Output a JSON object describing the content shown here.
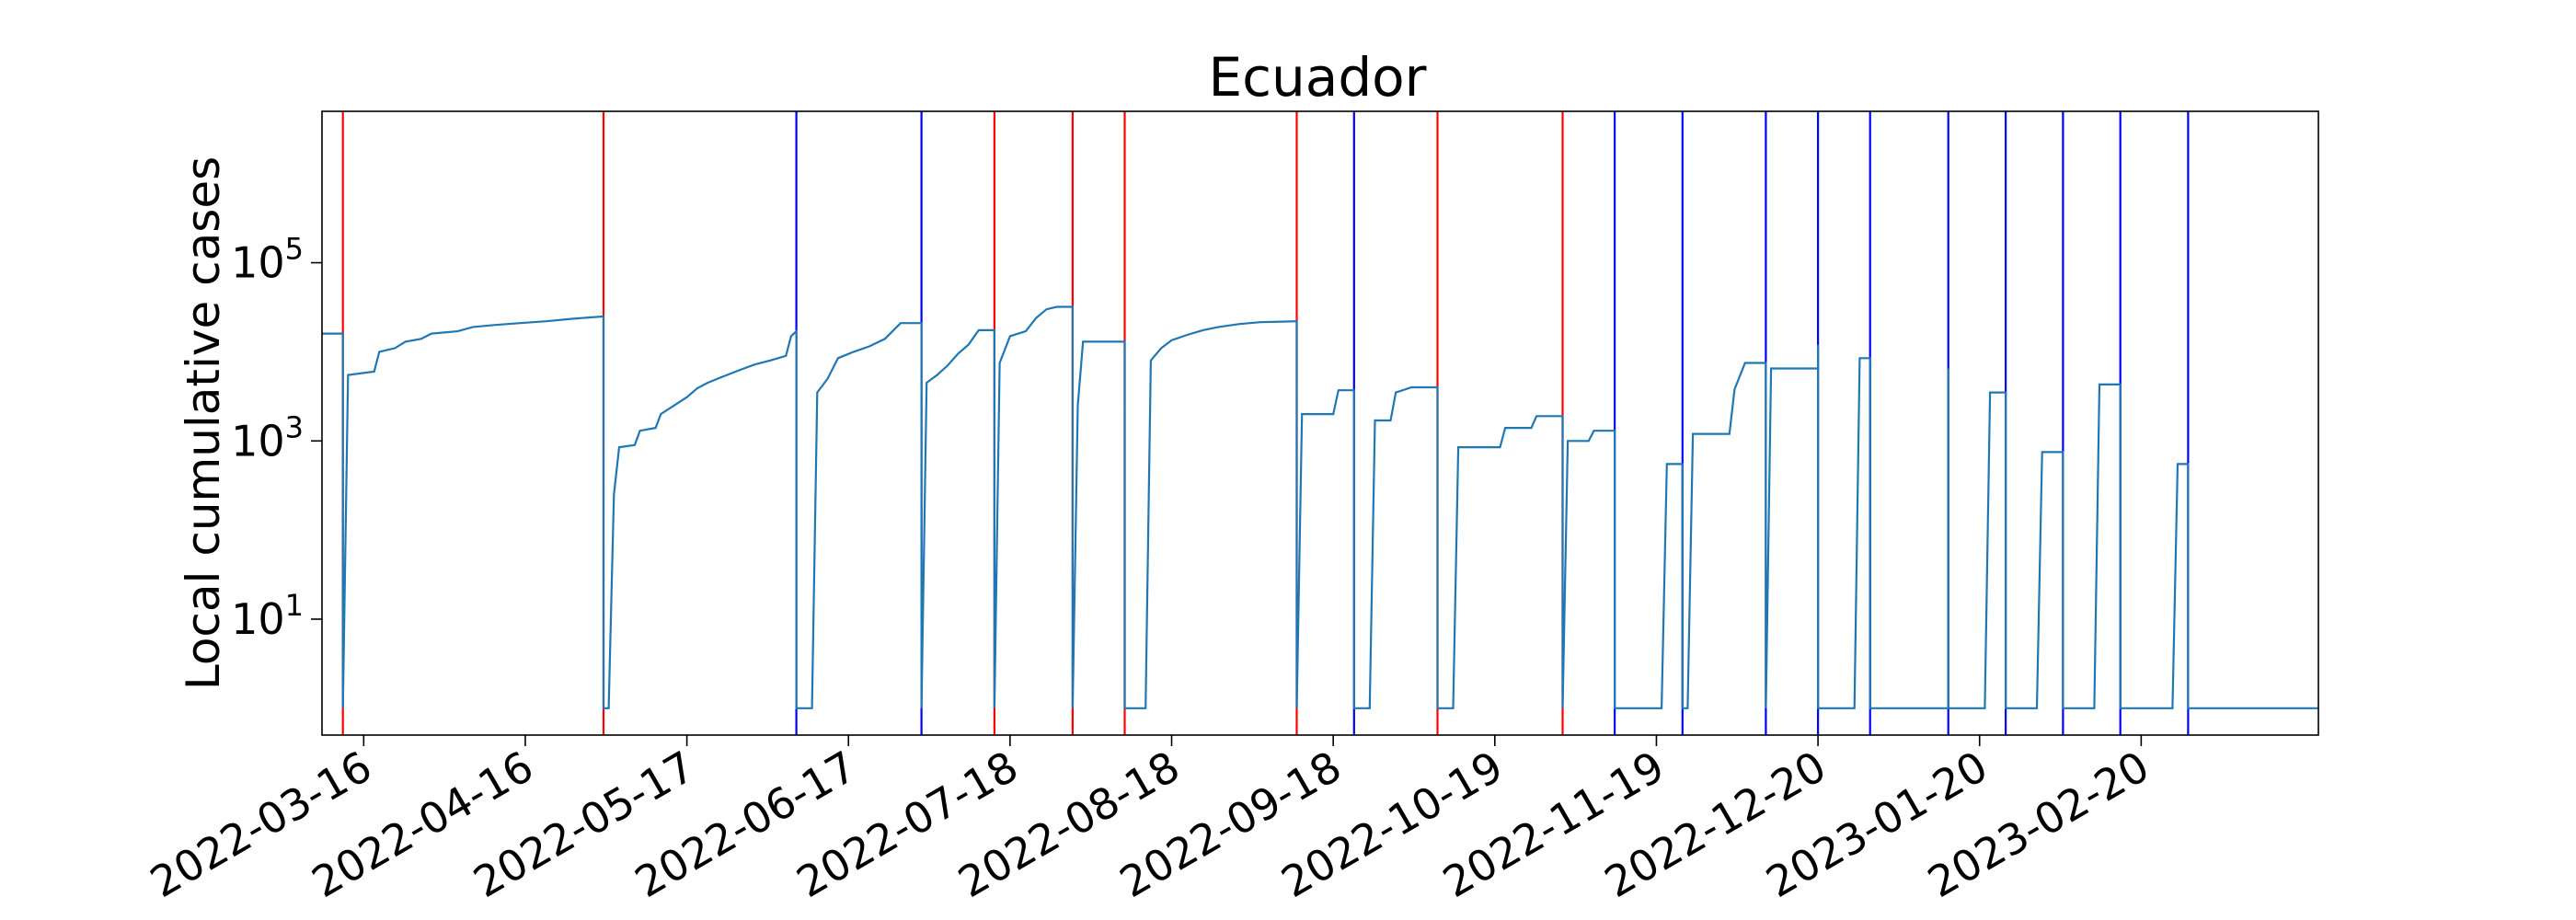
{
  "chart_data": {
    "type": "line",
    "title": "Ecuador",
    "xlabel": "",
    "ylabel": "Local cumulative cases",
    "y_scale": "log",
    "ylim": [
      0.5,
      5000000
    ],
    "xlim": [
      "2022-03-08",
      "2023-03-26"
    ],
    "y_ticks": [
      {
        "value": 10,
        "base": "10",
        "exp": "1"
      },
      {
        "value": 1000,
        "base": "10",
        "exp": "3"
      },
      {
        "value": 100000,
        "base": "10",
        "exp": "5"
      }
    ],
    "x_ticks": [
      "2022-03-16",
      "2022-04-16",
      "2022-05-17",
      "2022-06-17",
      "2022-07-18",
      "2022-08-18",
      "2022-09-18",
      "2022-10-19",
      "2022-11-19",
      "2022-12-20",
      "2023-01-20",
      "2023-02-20"
    ],
    "grid": false,
    "line_color": "#1f77b4",
    "vertical_lines": [
      {
        "x": "2022-03-12",
        "color": "#ff0000"
      },
      {
        "x": "2022-05-01",
        "color": "#ff0000"
      },
      {
        "x": "2022-06-07",
        "color": "#0000ff"
      },
      {
        "x": "2022-07-01",
        "color": "#0000ff"
      },
      {
        "x": "2022-07-15",
        "color": "#ff0000"
      },
      {
        "x": "2022-07-30",
        "color": "#ff0000"
      },
      {
        "x": "2022-08-09",
        "color": "#ff0000"
      },
      {
        "x": "2022-09-11",
        "color": "#ff0000"
      },
      {
        "x": "2022-09-22",
        "color": "#0000ff"
      },
      {
        "x": "2022-10-08",
        "color": "#ff0000"
      },
      {
        "x": "2022-11-01",
        "color": "#ff0000"
      },
      {
        "x": "2022-11-11",
        "color": "#0000ff"
      },
      {
        "x": "2022-11-24",
        "color": "#0000ff"
      },
      {
        "x": "2022-12-10",
        "color": "#0000ff"
      },
      {
        "x": "2022-12-20",
        "color": "#0000ff"
      },
      {
        "x": "2022-12-30",
        "color": "#0000ff"
      },
      {
        "x": "2023-01-14",
        "color": "#0000ff"
      },
      {
        "x": "2023-01-25",
        "color": "#0000ff"
      },
      {
        "x": "2023-02-05",
        "color": "#0000ff"
      },
      {
        "x": "2023-02-16",
        "color": "#0000ff"
      },
      {
        "x": "2023-03-01",
        "color": "#0000ff"
      }
    ],
    "series": [
      {
        "values": [
          [
            "2022-03-08",
            16000
          ],
          [
            "2022-03-12",
            16000
          ],
          [
            "2022-03-12",
            1
          ],
          [
            "2022-03-13",
            5500
          ],
          [
            "2022-03-18",
            6000
          ],
          [
            "2022-03-19",
            10000
          ],
          [
            "2022-03-22",
            11000
          ],
          [
            "2022-03-24",
            13000
          ],
          [
            "2022-03-27",
            14000
          ],
          [
            "2022-03-29",
            16000
          ],
          [
            "2022-04-03",
            17000
          ],
          [
            "2022-04-06",
            19000
          ],
          [
            "2022-04-10",
            20000
          ],
          [
            "2022-04-15",
            21000
          ],
          [
            "2022-04-20",
            22000
          ],
          [
            "2022-04-25",
            23500
          ],
          [
            "2022-05-01",
            25000
          ],
          [
            "2022-05-01",
            1
          ],
          [
            "2022-05-02",
            1
          ],
          [
            "2022-05-03",
            250
          ],
          [
            "2022-05-04",
            850
          ],
          [
            "2022-05-07",
            900
          ],
          [
            "2022-05-08",
            1300
          ],
          [
            "2022-05-11",
            1400
          ],
          [
            "2022-05-12",
            2000
          ],
          [
            "2022-05-15",
            2600
          ],
          [
            "2022-05-17",
            3100
          ],
          [
            "2022-05-19",
            3900
          ],
          [
            "2022-05-21",
            4500
          ],
          [
            "2022-05-24",
            5300
          ],
          [
            "2022-05-27",
            6200
          ],
          [
            "2022-05-30",
            7200
          ],
          [
            "2022-06-02",
            8000
          ],
          [
            "2022-06-05",
            9000
          ],
          [
            "2022-06-06",
            15000
          ],
          [
            "2022-06-07",
            17000
          ],
          [
            "2022-06-07",
            1
          ],
          [
            "2022-06-10",
            1
          ],
          [
            "2022-06-11",
            3500
          ],
          [
            "2022-06-13",
            5000
          ],
          [
            "2022-06-15",
            8500
          ],
          [
            "2022-06-18",
            10000
          ],
          [
            "2022-06-21",
            11500
          ],
          [
            "2022-06-24",
            14000
          ],
          [
            "2022-06-27",
            21000
          ],
          [
            "2022-07-01",
            21000
          ],
          [
            "2022-07-01",
            1
          ],
          [
            "2022-07-02",
            4500
          ],
          [
            "2022-07-04",
            5500
          ],
          [
            "2022-07-06",
            7000
          ],
          [
            "2022-07-08",
            9500
          ],
          [
            "2022-07-10",
            12000
          ],
          [
            "2022-07-12",
            17500
          ],
          [
            "2022-07-15",
            17500
          ],
          [
            "2022-07-15",
            1
          ],
          [
            "2022-07-16",
            7500
          ],
          [
            "2022-07-18",
            15000
          ],
          [
            "2022-07-21",
            17000
          ],
          [
            "2022-07-23",
            24000
          ],
          [
            "2022-07-25",
            30000
          ],
          [
            "2022-07-27",
            32000
          ],
          [
            "2022-07-30",
            32000
          ],
          [
            "2022-07-30",
            1
          ],
          [
            "2022-07-31",
            2500
          ],
          [
            "2022-08-01",
            13000
          ],
          [
            "2022-08-09",
            13000
          ],
          [
            "2022-08-09",
            1
          ],
          [
            "2022-08-13",
            1
          ],
          [
            "2022-08-14",
            8000
          ],
          [
            "2022-08-16",
            11000
          ],
          [
            "2022-08-18",
            13500
          ],
          [
            "2022-08-21",
            15500
          ],
          [
            "2022-08-24",
            17500
          ],
          [
            "2022-08-27",
            19000
          ],
          [
            "2022-08-31",
            20500
          ],
          [
            "2022-09-04",
            21500
          ],
          [
            "2022-09-11",
            22000
          ],
          [
            "2022-09-11",
            1
          ],
          [
            "2022-09-12",
            2000
          ],
          [
            "2022-09-18",
            2000
          ],
          [
            "2022-09-19",
            3700
          ],
          [
            "2022-09-22",
            3700
          ],
          [
            "2022-09-22",
            1
          ],
          [
            "2022-09-25",
            1
          ],
          [
            "2022-09-26",
            1700
          ],
          [
            "2022-09-29",
            1700
          ],
          [
            "2022-09-30",
            3500
          ],
          [
            "2022-10-03",
            4000
          ],
          [
            "2022-10-08",
            4000
          ],
          [
            "2022-10-08",
            1
          ],
          [
            "2022-10-11",
            1
          ],
          [
            "2022-10-12",
            850
          ],
          [
            "2022-10-20",
            850
          ],
          [
            "2022-10-21",
            1400
          ],
          [
            "2022-10-26",
            1400
          ],
          [
            "2022-10-27",
            1900
          ],
          [
            "2022-11-01",
            1900
          ],
          [
            "2022-11-01",
            1
          ],
          [
            "2022-11-02",
            1000
          ],
          [
            "2022-11-06",
            1000
          ],
          [
            "2022-11-07",
            1300
          ],
          [
            "2022-11-11",
            1300
          ],
          [
            "2022-11-11",
            1
          ],
          [
            "2022-11-20",
            1
          ],
          [
            "2022-11-21",
            550
          ],
          [
            "2022-11-24",
            550
          ],
          [
            "2022-11-24",
            1
          ],
          [
            "2022-11-25",
            1
          ],
          [
            "2022-11-26",
            1200
          ],
          [
            "2022-12-03",
            1200
          ],
          [
            "2022-12-04",
            3800
          ],
          [
            "2022-12-06",
            7500
          ],
          [
            "2022-12-10",
            7500
          ],
          [
            "2022-12-10",
            1
          ],
          [
            "2022-12-11",
            6500
          ],
          [
            "2022-12-20",
            6500
          ],
          [
            "2022-12-20",
            12000
          ],
          [
            "2022-12-20",
            1
          ],
          [
            "2022-12-27",
            1
          ],
          [
            "2022-12-28",
            8500
          ],
          [
            "2022-12-30",
            8500
          ],
          [
            "2022-12-30",
            1
          ],
          [
            "2023-01-14",
            1
          ],
          [
            "2023-01-14",
            6500
          ],
          [
            "2023-01-14",
            1
          ],
          [
            "2023-01-21",
            1
          ],
          [
            "2023-01-22",
            3500
          ],
          [
            "2023-01-25",
            3500
          ],
          [
            "2023-01-25",
            1
          ],
          [
            "2023-01-31",
            1
          ],
          [
            "2023-02-01",
            750
          ],
          [
            "2023-02-05",
            750
          ],
          [
            "2023-02-05",
            1
          ],
          [
            "2023-02-11",
            1
          ],
          [
            "2023-02-12",
            4300
          ],
          [
            "2023-02-16",
            4300
          ],
          [
            "2023-02-16",
            1
          ],
          [
            "2023-02-26",
            1
          ],
          [
            "2023-02-27",
            550
          ],
          [
            "2023-03-01",
            550
          ],
          [
            "2023-03-01",
            1
          ],
          [
            "2023-03-26",
            1
          ]
        ]
      }
    ]
  }
}
